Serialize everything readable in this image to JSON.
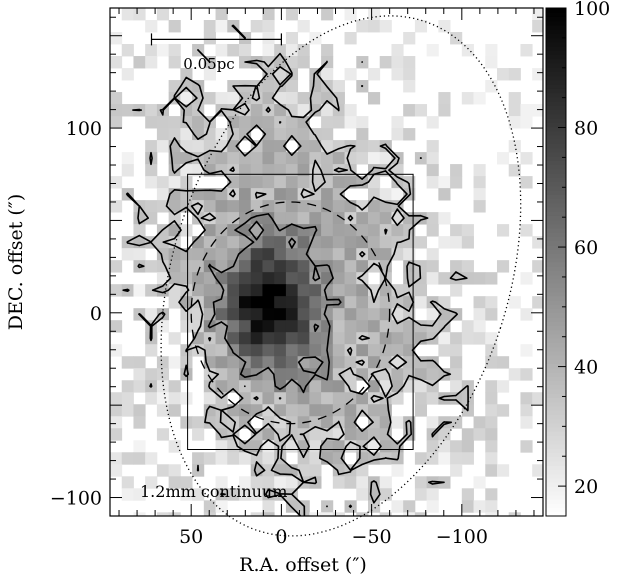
{
  "chart_data": {
    "type": "heatmap",
    "xlabel": "R.A. offset (″)",
    "ylabel": "DEC. offset (″)",
    "xlim": [
      95,
      -145
    ],
    "ylim": [
      -110,
      165
    ],
    "x_ticks": [
      50,
      0,
      -50,
      -100
    ],
    "x_tick_labels": [
      "50",
      "0",
      "−50",
      "−100"
    ],
    "y_ticks": [
      100,
      0,
      -100
    ],
    "y_tick_labels": [
      "100",
      "0",
      "−100"
    ],
    "colorbar": {
      "range": [
        15,
        100
      ],
      "ticks": [
        100,
        80,
        60,
        40,
        20
      ],
      "tick_labels": [
        "100",
        "80",
        "60",
        "40",
        "20"
      ]
    },
    "scale_bar": {
      "label": "0.05pc",
      "x_range": [
        72,
        0
      ],
      "y": 148
    },
    "annotation": "1.2mm continuum",
    "emission_peak": {
      "x": 8,
      "y": 3,
      "value": 100
    },
    "outer_ellipse": {
      "cx": -33,
      "cy": 20,
      "rx": 93,
      "ry": 145,
      "rotation_deg": 18,
      "style": "dotted"
    },
    "inner_ellipse": {
      "cx": -5,
      "cy": 0,
      "rx": 55,
      "ry": 60,
      "rotation_deg": 0,
      "style": "dashed"
    },
    "box": {
      "x_range": [
        52,
        -73
      ],
      "y_range": [
        -74,
        75
      ]
    }
  }
}
